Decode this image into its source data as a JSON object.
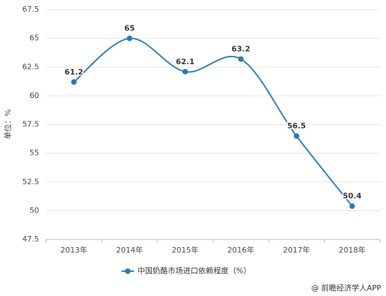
{
  "chart_data": {
    "type": "line",
    "categories": [
      "2013年",
      "2014年",
      "2015年",
      "2016年",
      "2017年",
      "2018年"
    ],
    "series": [
      {
        "name": "中国奶酪市场进口依赖程度（%）",
        "color": "#2a78b4",
        "values": [
          61.2,
          65,
          62.1,
          63.2,
          56.5,
          50.4
        ]
      }
    ],
    "y_label": "单位：%",
    "ylim": [
      47.5,
      67.5
    ],
    "yticks": [
      47.5,
      50,
      52.5,
      55,
      57.5,
      60,
      62.5,
      65,
      67.5
    ],
    "grid": true,
    "legend": "bottom",
    "source": "@ 前瞻经济学人APP"
  }
}
